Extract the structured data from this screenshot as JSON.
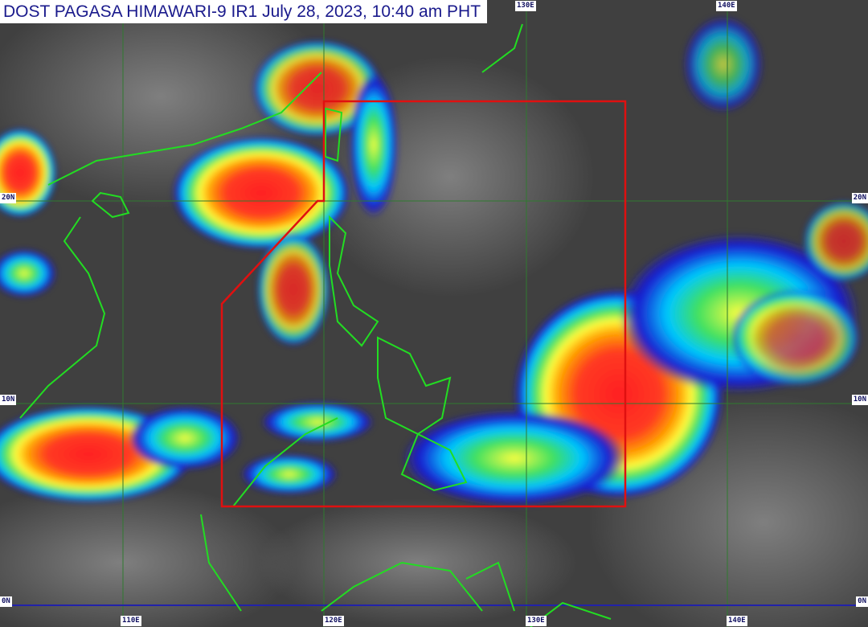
{
  "title": "DOST PAGASA HIMAWARI-9 IR1 July 28, 2023, 10:40 am PHT",
  "grid_labels": {
    "top": [
      "130E",
      "140E"
    ],
    "bottom": [
      "110E",
      "120E",
      "130E",
      "140E"
    ],
    "left": [
      "20N",
      "10N",
      "0N"
    ],
    "right": [
      "20N",
      "10N",
      "0N"
    ]
  },
  "colors": {
    "coastline": "#22dd22",
    "grid": "#2f7a2f",
    "equator": "#2222aa",
    "area_of_responsibility": "#e01010",
    "title_text": "#1a1a8c"
  },
  "palette": [
    "#1010c0",
    "#00c8ff",
    "#30e060",
    "#ffff30",
    "#ff9a00",
    "#ff2020"
  ]
}
